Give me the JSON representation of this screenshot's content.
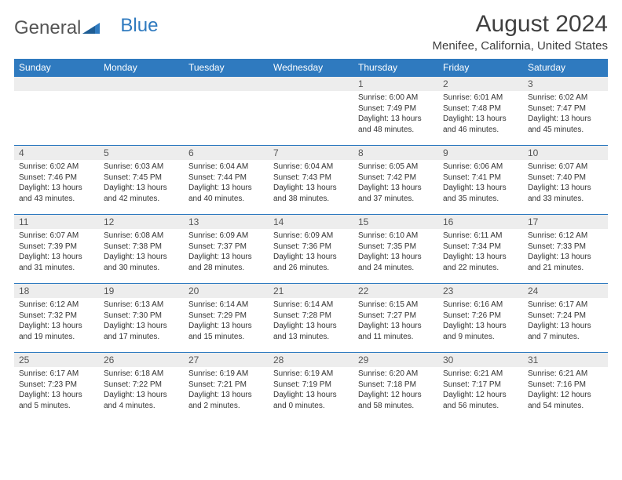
{
  "brand": {
    "part1": "General",
    "part2": "Blue"
  },
  "title": "August 2024",
  "location": "Menifee, California, United States",
  "colors": {
    "header_bg": "#2f7abf",
    "header_text": "#ffffff",
    "daynum_bg": "#ededed",
    "border": "#2f7abf",
    "text": "#333333",
    "title_text": "#404040"
  },
  "typography": {
    "title_fontsize": 30,
    "location_fontsize": 15,
    "header_fontsize": 12,
    "body_fontsize": 10
  },
  "day_headers": [
    "Sunday",
    "Monday",
    "Tuesday",
    "Wednesday",
    "Thursday",
    "Friday",
    "Saturday"
  ],
  "weeks": [
    [
      null,
      null,
      null,
      null,
      {
        "n": "1",
        "sr": "6:00 AM",
        "ss": "7:49 PM",
        "dl": "13 hours and 48 minutes."
      },
      {
        "n": "2",
        "sr": "6:01 AM",
        "ss": "7:48 PM",
        "dl": "13 hours and 46 minutes."
      },
      {
        "n": "3",
        "sr": "6:02 AM",
        "ss": "7:47 PM",
        "dl": "13 hours and 45 minutes."
      }
    ],
    [
      {
        "n": "4",
        "sr": "6:02 AM",
        "ss": "7:46 PM",
        "dl": "13 hours and 43 minutes."
      },
      {
        "n": "5",
        "sr": "6:03 AM",
        "ss": "7:45 PM",
        "dl": "13 hours and 42 minutes."
      },
      {
        "n": "6",
        "sr": "6:04 AM",
        "ss": "7:44 PM",
        "dl": "13 hours and 40 minutes."
      },
      {
        "n": "7",
        "sr": "6:04 AM",
        "ss": "7:43 PM",
        "dl": "13 hours and 38 minutes."
      },
      {
        "n": "8",
        "sr": "6:05 AM",
        "ss": "7:42 PM",
        "dl": "13 hours and 37 minutes."
      },
      {
        "n": "9",
        "sr": "6:06 AM",
        "ss": "7:41 PM",
        "dl": "13 hours and 35 minutes."
      },
      {
        "n": "10",
        "sr": "6:07 AM",
        "ss": "7:40 PM",
        "dl": "13 hours and 33 minutes."
      }
    ],
    [
      {
        "n": "11",
        "sr": "6:07 AM",
        "ss": "7:39 PM",
        "dl": "13 hours and 31 minutes."
      },
      {
        "n": "12",
        "sr": "6:08 AM",
        "ss": "7:38 PM",
        "dl": "13 hours and 30 minutes."
      },
      {
        "n": "13",
        "sr": "6:09 AM",
        "ss": "7:37 PM",
        "dl": "13 hours and 28 minutes."
      },
      {
        "n": "14",
        "sr": "6:09 AM",
        "ss": "7:36 PM",
        "dl": "13 hours and 26 minutes."
      },
      {
        "n": "15",
        "sr": "6:10 AM",
        "ss": "7:35 PM",
        "dl": "13 hours and 24 minutes."
      },
      {
        "n": "16",
        "sr": "6:11 AM",
        "ss": "7:34 PM",
        "dl": "13 hours and 22 minutes."
      },
      {
        "n": "17",
        "sr": "6:12 AM",
        "ss": "7:33 PM",
        "dl": "13 hours and 21 minutes."
      }
    ],
    [
      {
        "n": "18",
        "sr": "6:12 AM",
        "ss": "7:32 PM",
        "dl": "13 hours and 19 minutes."
      },
      {
        "n": "19",
        "sr": "6:13 AM",
        "ss": "7:30 PM",
        "dl": "13 hours and 17 minutes."
      },
      {
        "n": "20",
        "sr": "6:14 AM",
        "ss": "7:29 PM",
        "dl": "13 hours and 15 minutes."
      },
      {
        "n": "21",
        "sr": "6:14 AM",
        "ss": "7:28 PM",
        "dl": "13 hours and 13 minutes."
      },
      {
        "n": "22",
        "sr": "6:15 AM",
        "ss": "7:27 PM",
        "dl": "13 hours and 11 minutes."
      },
      {
        "n": "23",
        "sr": "6:16 AM",
        "ss": "7:26 PM",
        "dl": "13 hours and 9 minutes."
      },
      {
        "n": "24",
        "sr": "6:17 AM",
        "ss": "7:24 PM",
        "dl": "13 hours and 7 minutes."
      }
    ],
    [
      {
        "n": "25",
        "sr": "6:17 AM",
        "ss": "7:23 PM",
        "dl": "13 hours and 5 minutes."
      },
      {
        "n": "26",
        "sr": "6:18 AM",
        "ss": "7:22 PM",
        "dl": "13 hours and 4 minutes."
      },
      {
        "n": "27",
        "sr": "6:19 AM",
        "ss": "7:21 PM",
        "dl": "13 hours and 2 minutes."
      },
      {
        "n": "28",
        "sr": "6:19 AM",
        "ss": "7:19 PM",
        "dl": "13 hours and 0 minutes."
      },
      {
        "n": "29",
        "sr": "6:20 AM",
        "ss": "7:18 PM",
        "dl": "12 hours and 58 minutes."
      },
      {
        "n": "30",
        "sr": "6:21 AM",
        "ss": "7:17 PM",
        "dl": "12 hours and 56 minutes."
      },
      {
        "n": "31",
        "sr": "6:21 AM",
        "ss": "7:16 PM",
        "dl": "12 hours and 54 minutes."
      }
    ]
  ],
  "labels": {
    "sunrise": "Sunrise:",
    "sunset": "Sunset:",
    "daylight": "Daylight:"
  }
}
